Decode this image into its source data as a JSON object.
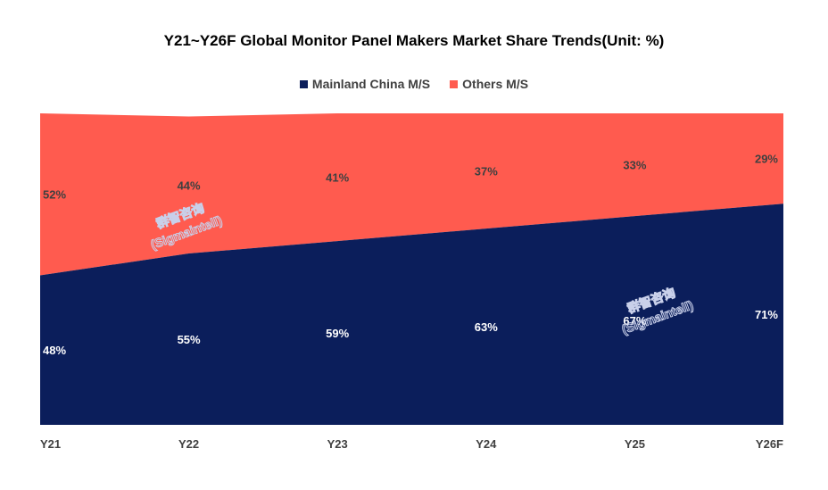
{
  "chart_data": {
    "type": "area",
    "title": "Y21~Y26F Global Monitor Panel Makers Market Share Trends(Unit: %)",
    "stacked": true,
    "categories": [
      "Y21",
      "Y22",
      "Y23",
      "Y24",
      "Y25",
      "Y26F"
    ],
    "series": [
      {
        "name": "Mainland China M/S",
        "values": [
          48,
          55,
          59,
          63,
          67,
          71
        ],
        "color": "#0b1e5b",
        "label_color": "#ffffff",
        "labels": [
          "48%",
          "55%",
          "59%",
          "63%",
          "67%",
          "71%"
        ]
      },
      {
        "name": "Others M/S",
        "values": [
          52,
          44,
          41,
          37,
          33,
          29
        ],
        "color": "#ff5b4f",
        "label_color": "#404040",
        "labels": [
          "52%",
          "44%",
          "41%",
          "37%",
          "33%",
          "29%"
        ]
      }
    ],
    "ylim": [
      0,
      100
    ],
    "legend": "top-center",
    "grid": false
  },
  "watermarks": [
    {
      "line1": "群智咨询",
      "line2": "(Sigmaintell)"
    },
    {
      "line1": "群智咨询",
      "line2": "(Sigmaintell)"
    }
  ]
}
